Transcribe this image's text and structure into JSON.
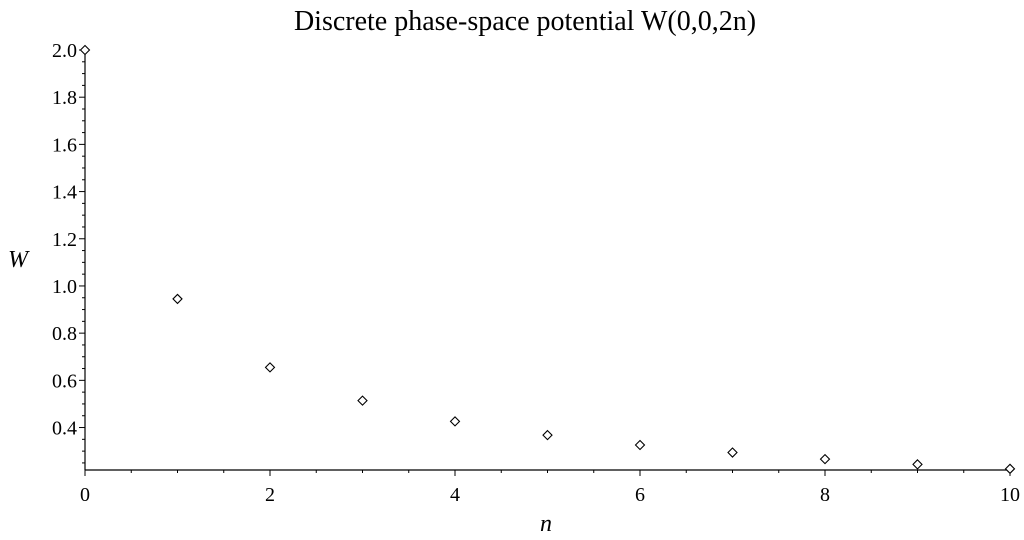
{
  "chart_data": {
    "type": "scatter",
    "title": "Discrete phase-space potential W(0,0,2n)",
    "xlabel": "n",
    "ylabel": "W",
    "xlim": [
      0,
      10
    ],
    "ylim": [
      0.22,
      2.0
    ],
    "x_ticks": [
      "0",
      "2",
      "4",
      "6",
      "8",
      "10"
    ],
    "y_ticks": [
      "0.4",
      "0.6",
      "0.8",
      "1.0",
      "1.2",
      "1.4",
      "1.6",
      "1.8",
      "2.0"
    ],
    "marker": "diamond-open",
    "grid": false,
    "series": [
      {
        "x": [
          0,
          1,
          2,
          3,
          4,
          5,
          6,
          7,
          8,
          9,
          10
        ],
        "y": [
          2.0,
          0.945,
          0.655,
          0.514,
          0.426,
          0.368,
          0.326,
          0.294,
          0.266,
          0.244,
          0.225
        ]
      }
    ]
  }
}
